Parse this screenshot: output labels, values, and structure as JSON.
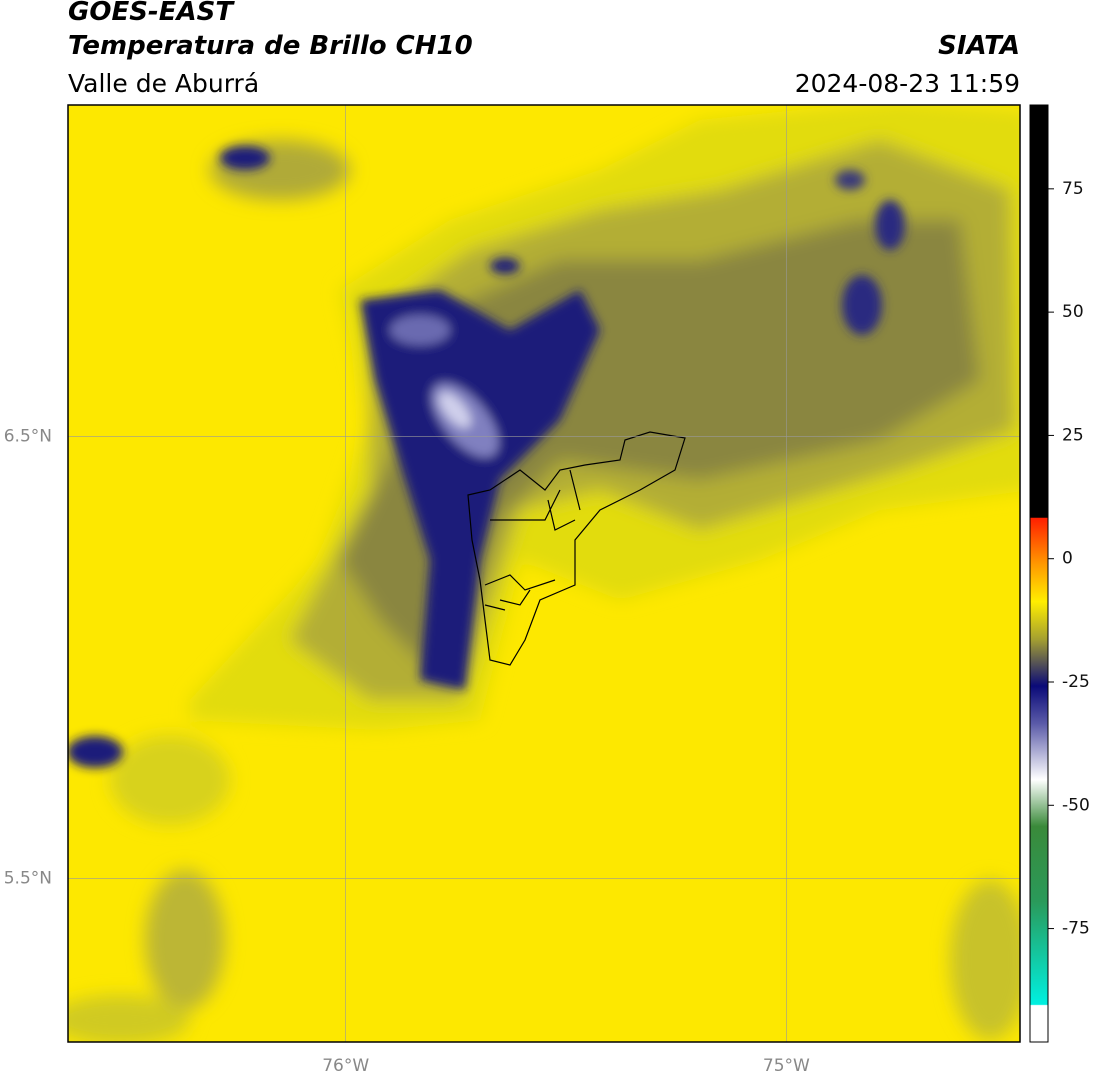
{
  "header": {
    "title": "GOES-EAST",
    "subtitle": "Temperatura de Brillo CH10",
    "region": "Valle de Aburrá",
    "source": "SIATA",
    "datetime": "2024-08-23 11:59"
  },
  "chart_data": {
    "type": "map",
    "xlim": [
      -76.63,
      -74.47
    ],
    "ylim": [
      5.13,
      7.25
    ],
    "xticks": [
      {
        "value": -76,
        "label": "76°W"
      },
      {
        "value": -75,
        "label": "75°W"
      }
    ],
    "yticks": [
      {
        "value": 6.5,
        "label": "6.5°N"
      },
      {
        "value": 5.5,
        "label": "5.5°N"
      }
    ],
    "grid": true,
    "colorbar": {
      "lim": [
        -98,
        92
      ],
      "ticks": [
        75,
        50,
        25,
        0,
        -25,
        -50,
        -75
      ]
    }
  }
}
